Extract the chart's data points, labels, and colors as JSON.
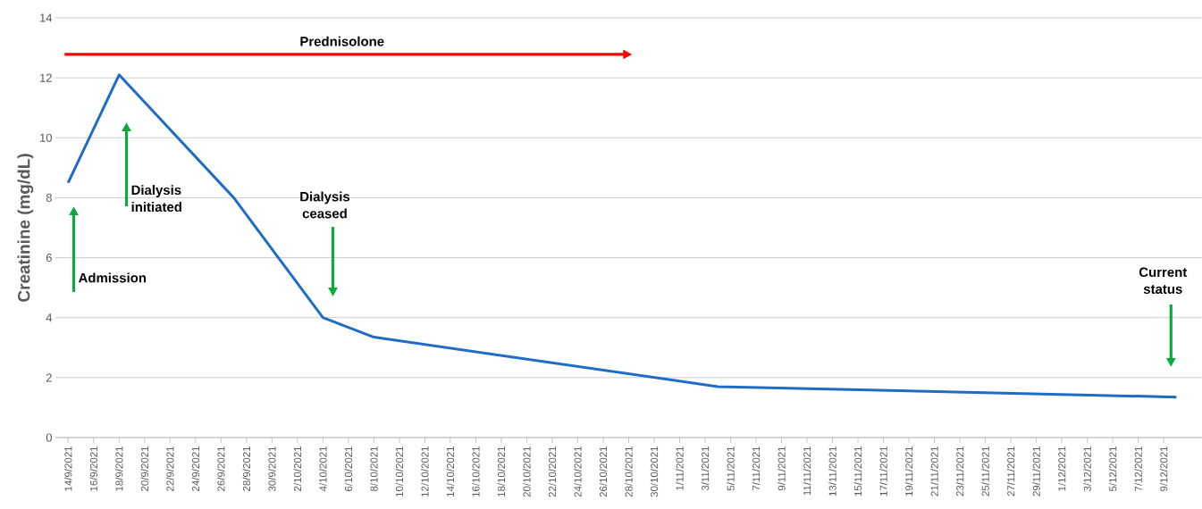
{
  "chart_data": {
    "type": "line",
    "ylabel": "Creatinine (mg/dL)",
    "x": [
      "2021-09-14",
      "2021-09-18",
      "2021-09-27",
      "2021-10-04",
      "2021-10-08",
      "2021-11-04",
      "2021-12-10"
    ],
    "series": [
      {
        "color": "#1f6cc8",
        "values": [
          8.5,
          12.1,
          8.0,
          4.0,
          3.35,
          1.7,
          1.35
        ]
      }
    ],
    "ylim": [
      0,
      14
    ],
    "yticks": [
      0,
      2,
      4,
      6,
      8,
      10,
      12,
      14
    ],
    "xlim": [
      "2021-09-13",
      "2021-12-12"
    ],
    "xticks": [
      {
        "value": "2021-09-14",
        "label": "14/9/2021"
      },
      {
        "value": "2021-09-16",
        "label": "16/9/2021"
      },
      {
        "value": "2021-09-18",
        "label": "18/9/2021"
      },
      {
        "value": "2021-09-20",
        "label": "20/9/2021"
      },
      {
        "value": "2021-09-22",
        "label": "22/9/2021"
      },
      {
        "value": "2021-09-24",
        "label": "24/9/2021"
      },
      {
        "value": "2021-09-26",
        "label": "26/9/2021"
      },
      {
        "value": "2021-09-28",
        "label": "28/9/2021"
      },
      {
        "value": "2021-09-30",
        "label": "30/9/2021"
      },
      {
        "value": "2021-10-02",
        "label": "2/10/2021"
      },
      {
        "value": "2021-10-04",
        "label": "4/10/2021"
      },
      {
        "value": "2021-10-06",
        "label": "6/10/2021"
      },
      {
        "value": "2021-10-08",
        "label": "8/10/2021"
      },
      {
        "value": "2021-10-10",
        "label": "10/10/2021"
      },
      {
        "value": "2021-10-12",
        "label": "12/10/2021"
      },
      {
        "value": "2021-10-14",
        "label": "14/10/2021"
      },
      {
        "value": "2021-10-16",
        "label": "16/10/2021"
      },
      {
        "value": "2021-10-18",
        "label": "18/10/2021"
      },
      {
        "value": "2021-10-20",
        "label": "20/10/2021"
      },
      {
        "value": "2021-10-22",
        "label": "22/10/2021"
      },
      {
        "value": "2021-10-24",
        "label": "24/10/2021"
      },
      {
        "value": "2021-10-26",
        "label": "26/10/2021"
      },
      {
        "value": "2021-10-28",
        "label": "28/10/2021"
      },
      {
        "value": "2021-10-30",
        "label": "30/10/2021"
      },
      {
        "value": "2021-11-01",
        "label": "1/11/2021"
      },
      {
        "value": "2021-11-03",
        "label": "3/11/2021"
      },
      {
        "value": "2021-11-05",
        "label": "5/11/2021"
      },
      {
        "value": "2021-11-07",
        "label": "7/11/2021"
      },
      {
        "value": "2021-11-09",
        "label": "9/11/2021"
      },
      {
        "value": "2021-11-11",
        "label": "11/11/2021"
      },
      {
        "value": "2021-11-13",
        "label": "13/11/2021"
      },
      {
        "value": "2021-11-15",
        "label": "15/11/2021"
      },
      {
        "value": "2021-11-17",
        "label": "17/11/2021"
      },
      {
        "value": "2021-11-19",
        "label": "19/11/2021"
      },
      {
        "value": "2021-11-21",
        "label": "21/11/2021"
      },
      {
        "value": "2021-11-23",
        "label": "23/11/2021"
      },
      {
        "value": "2021-11-25",
        "label": "25/11/2021"
      },
      {
        "value": "2021-11-27",
        "label": "27/11/2021"
      },
      {
        "value": "2021-11-29",
        "label": "29/11/2021"
      },
      {
        "value": "2021-12-01",
        "label": "1/12/2021"
      },
      {
        "value": "2021-12-03",
        "label": "3/12/2021"
      },
      {
        "value": "2021-12-05",
        "label": "5/12/2021"
      },
      {
        "value": "2021-12-07",
        "label": "7/12/2021"
      },
      {
        "value": "2021-12-09",
        "label": "9/12/2021"
      }
    ],
    "grid": "y",
    "annotations": [
      "Prednisolone",
      "Admission",
      "Dialysis initiated",
      "Dialysis ceased",
      "Current status"
    ]
  }
}
